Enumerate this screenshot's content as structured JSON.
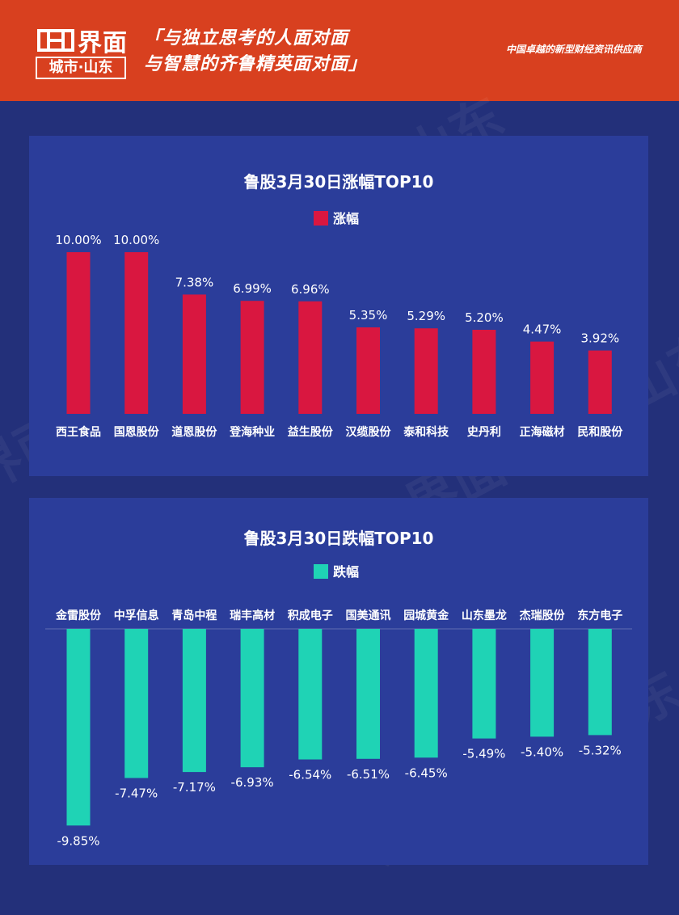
{
  "header": {
    "brand": "界面",
    "city": "城市·山东",
    "slogan_line1": "「与独立思考的人面对面",
    "slogan_line2": "与智慧的齐鲁精英面对面」",
    "tagline": "中国卓越的新型财经资讯供应商",
    "watermark": "界面 城市·山东"
  },
  "colors": {
    "header_bg": "#d8401f",
    "page_bg": "#23307a",
    "panel_bg": "#2b3d9a",
    "gain_bar": "#d91740",
    "loss_bar": "#1fd3b5"
  },
  "chart_data": [
    {
      "type": "bar",
      "title": "鲁股3月30日涨幅TOP10",
      "legend": "涨幅",
      "legend_position": "top-center",
      "categories": [
        "西王食品",
        "国恩股份",
        "道恩股份",
        "登海种业",
        "益生股份",
        "汉缆股份",
        "泰和科技",
        "史丹利",
        "正海磁材",
        "民和股份"
      ],
      "values": [
        10.0,
        10.0,
        7.38,
        6.99,
        6.96,
        5.35,
        5.29,
        5.2,
        4.47,
        3.92
      ],
      "labels": [
        "10.00%",
        "10.00%",
        "7.38%",
        "6.99%",
        "6.96%",
        "5.35%",
        "5.29%",
        "5.20%",
        "4.47%",
        "3.92%"
      ],
      "ylim": [
        0,
        10
      ],
      "grid": false
    },
    {
      "type": "bar",
      "title": "鲁股3月30日跌幅TOP10",
      "legend": "跌幅",
      "legend_position": "top-center",
      "categories": [
        "金雷股份",
        "中孚信息",
        "青岛中程",
        "瑞丰高材",
        "积成电子",
        "国美通讯",
        "园城黄金",
        "山东墨龙",
        "杰瑞股份",
        "东方电子"
      ],
      "values": [
        -9.85,
        -7.47,
        -7.17,
        -6.93,
        -6.54,
        -6.51,
        -6.45,
        -5.49,
        -5.4,
        -5.32
      ],
      "labels": [
        "-9.85%",
        "-7.47%",
        "-7.17%",
        "-6.93%",
        "-6.54%",
        "-6.51%",
        "-6.45%",
        "-5.49%",
        "-5.40%",
        "-5.32%"
      ],
      "ylim": [
        -10,
        0
      ],
      "grid": false
    }
  ]
}
